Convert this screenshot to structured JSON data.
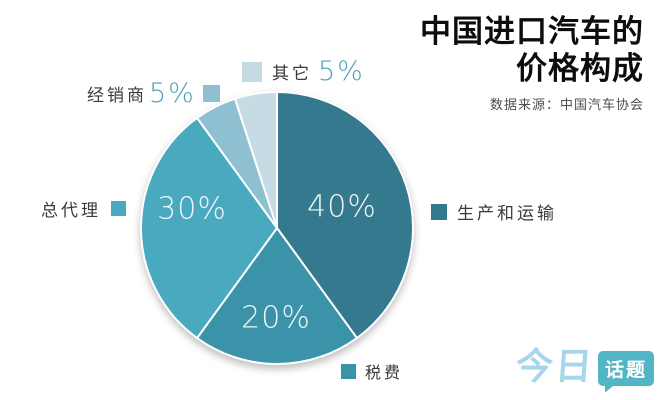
{
  "header": {
    "title_line1": "中国进口汽车的",
    "title_line2": "价格构成",
    "source": "数据来源：中国汽车协会"
  },
  "chart_data": {
    "type": "pie",
    "title": "中国进口汽车的价格构成",
    "source": "数据来源：中国汽车协会",
    "unit": "percent",
    "start_angle_deg": -90,
    "direction": "clockwise",
    "slices": [
      {
        "label": "生产和运输",
        "value": 40,
        "pct": "40%",
        "color": "#35798f"
      },
      {
        "label": "税费",
        "value": 20,
        "pct": "20%",
        "color": "#3b93aa"
      },
      {
        "label": "总代理",
        "value": 30,
        "pct": "30%",
        "color": "#49a9bf"
      },
      {
        "label": "经销商",
        "value": 5,
        "pct": "5%",
        "color": "#8fc0d2"
      },
      {
        "label": "其它",
        "value": 5,
        "pct": "5%",
        "color": "#c6dbe4"
      }
    ],
    "inside_label_color": "#f2f6f8",
    "percent_accent_color": "#4aa0ba"
  },
  "logo": {
    "part1": "今日",
    "part2": "话题",
    "part1_color": "#a7d6ec",
    "part2_bg": "#52b5c6"
  }
}
